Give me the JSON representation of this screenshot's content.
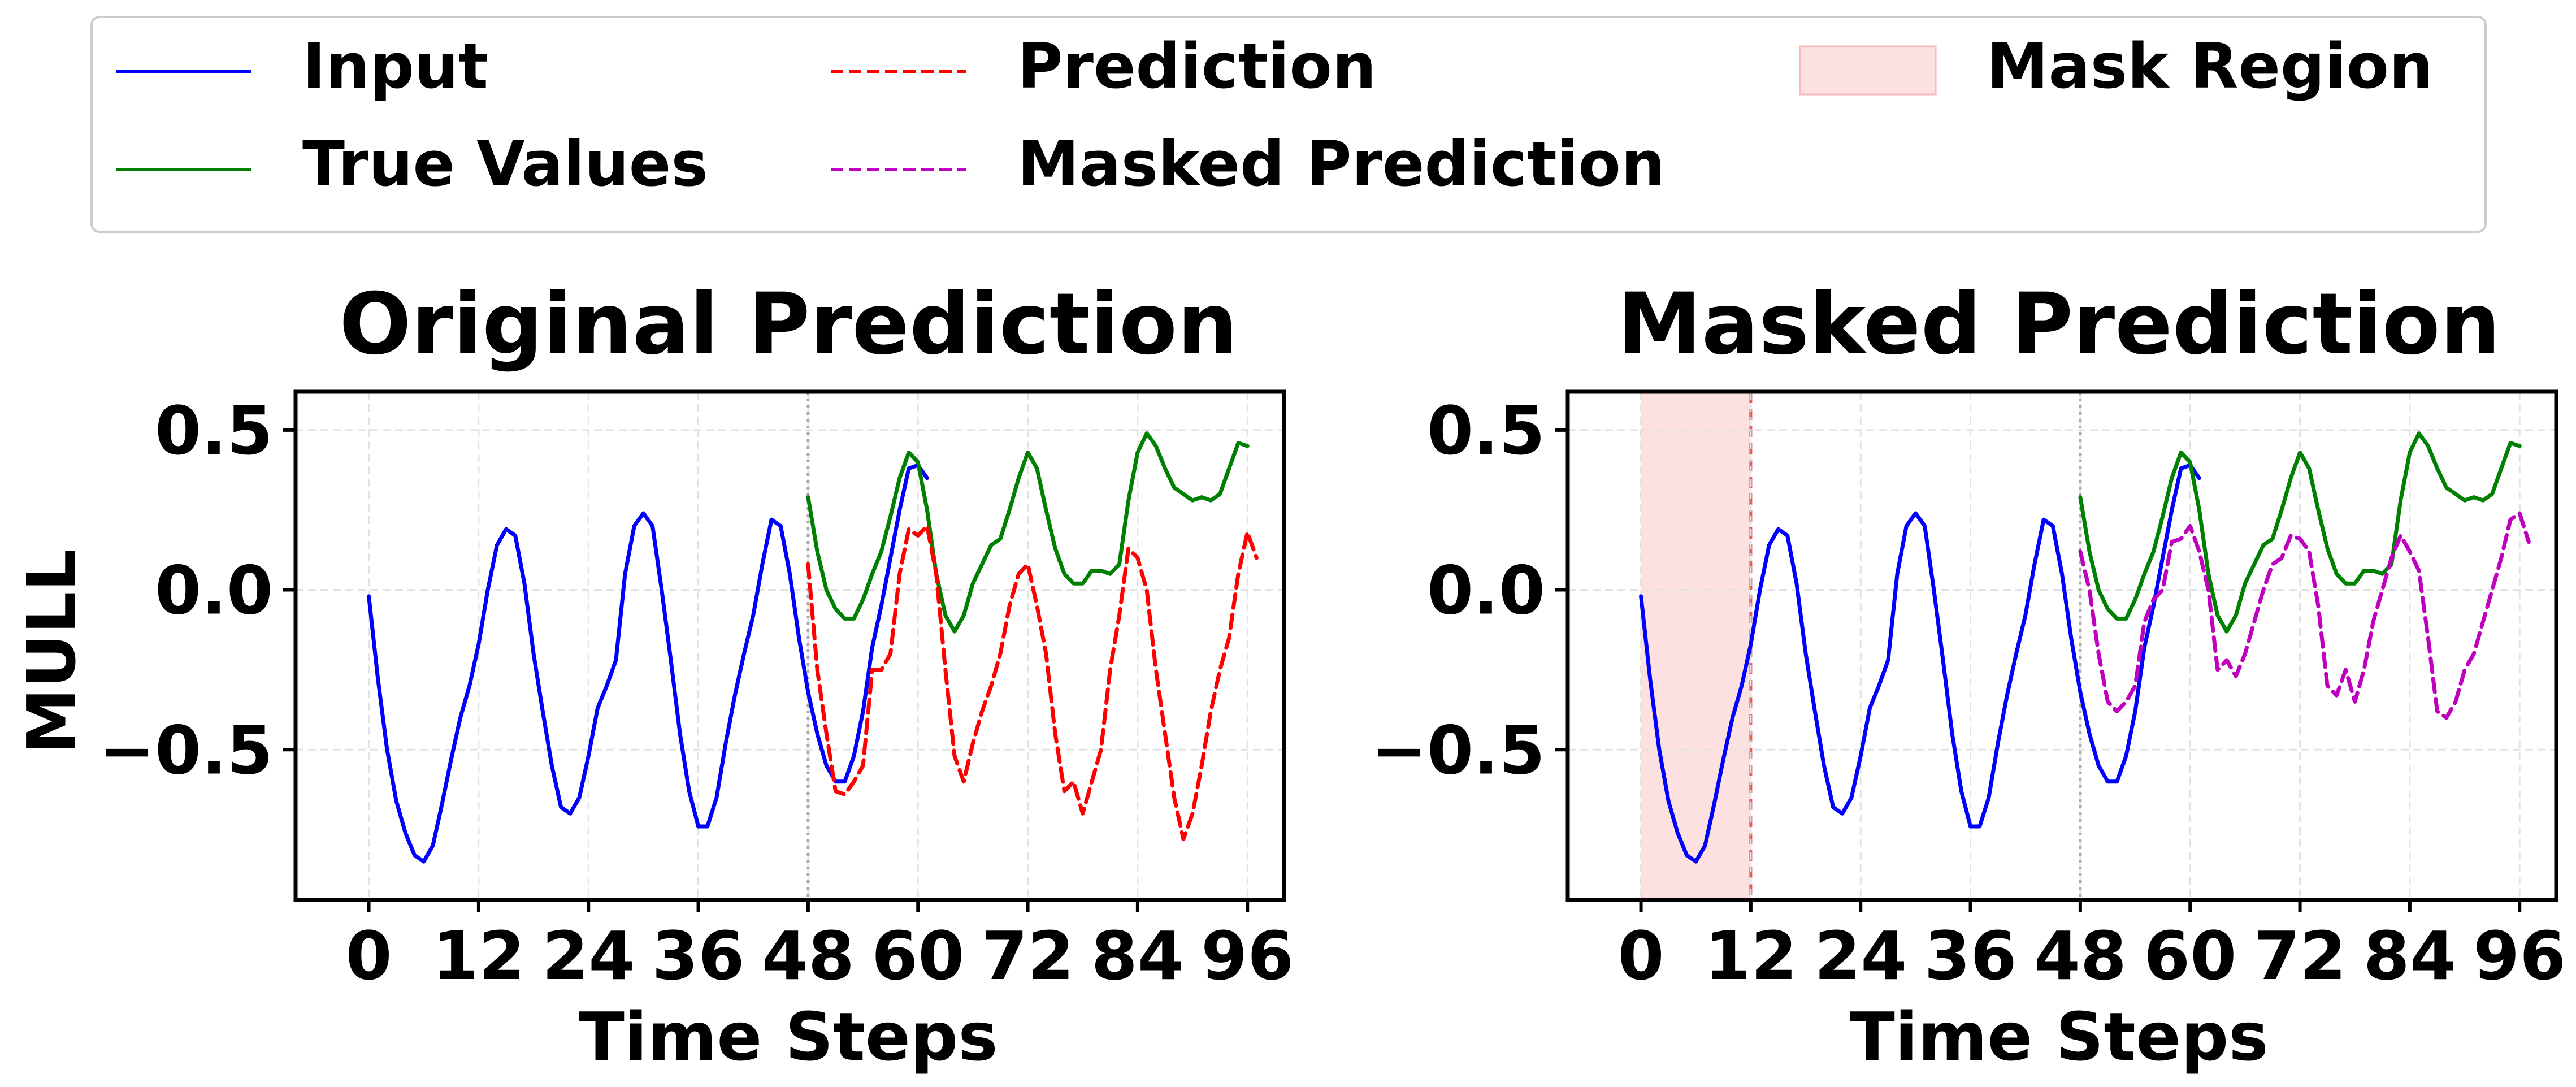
{
  "legend": {
    "items": [
      {
        "label": "Input",
        "color": "#0000ff",
        "style": "solid"
      },
      {
        "label": "True Values",
        "color": "#008000",
        "style": "solid"
      },
      {
        "label": "Prediction",
        "color": "#ff0000",
        "style": "dashed"
      },
      {
        "label": "Masked Prediction",
        "color": "#bf00bf",
        "style": "dashed"
      },
      {
        "label": "Mask Region",
        "color": "#fde0e0",
        "style": "patch"
      }
    ],
    "placement": "top"
  },
  "chart_data": [
    {
      "type": "line",
      "title": "Original Prediction",
      "xlabel": "Time Steps",
      "ylabel": "MULL",
      "xlim": [
        -8,
        100
      ],
      "ylim": [
        -0.97,
        0.62
      ],
      "xticks": [
        0,
        12,
        24,
        36,
        48,
        60,
        72,
        84,
        96
      ],
      "yticks": [
        0.5,
        0.0,
        -0.5
      ],
      "ytick_labels": [
        "0.5",
        "0.0",
        "−0.5"
      ],
      "grid": true,
      "forecast_start": 48,
      "series": [
        {
          "name": "Input",
          "color": "#0000ff",
          "dash": "solid",
          "x_start": 0,
          "values": [
            -0.02,
            -0.28,
            -0.5,
            -0.66,
            -0.76,
            -0.83,
            -0.85,
            -0.8,
            -0.67,
            -0.53,
            -0.4,
            -0.3,
            -0.17,
            0.0,
            0.14,
            0.19,
            0.17,
            0.02,
            -0.2,
            -0.38,
            -0.55,
            -0.68,
            -0.7,
            -0.65,
            -0.52,
            -0.37,
            -0.3,
            -0.22,
            0.05,
            0.2,
            0.24,
            0.2,
            0.0,
            -0.22,
            -0.45,
            -0.63,
            -0.74,
            -0.74,
            -0.65,
            -0.48,
            -0.33,
            -0.2,
            -0.08,
            0.08,
            0.22,
            0.2,
            0.05,
            -0.15,
            -0.32,
            -0.45,
            -0.55,
            -0.6,
            -0.6,
            -0.52,
            -0.38,
            -0.18,
            -0.05,
            0.1,
            0.25,
            0.38,
            0.39,
            0.35
          ]
        },
        {
          "name": "True Values",
          "color": "#008000",
          "dash": "solid",
          "x_start": 48,
          "values": [
            0.29,
            0.12,
            0.0,
            -0.06,
            -0.09,
            -0.09,
            -0.03,
            0.05,
            0.12,
            0.23,
            0.35,
            0.43,
            0.4,
            0.25,
            0.05,
            -0.08,
            -0.13,
            -0.08,
            0.02,
            0.08,
            0.14,
            0.16,
            0.25,
            0.35,
            0.43,
            0.38,
            0.25,
            0.13,
            0.05,
            0.02,
            0.02,
            0.06,
            0.06,
            0.05,
            0.08,
            0.28,
            0.43,
            0.49,
            0.45,
            0.38,
            0.32,
            0.3,
            0.28,
            0.29,
            0.28,
            0.3,
            0.38,
            0.46,
            0.45
          ]
        },
        {
          "name": "Prediction",
          "color": "#ff0000",
          "dash": "dashed",
          "x_start": 48,
          "values": [
            0.08,
            -0.25,
            -0.45,
            -0.63,
            -0.64,
            -0.6,
            -0.55,
            -0.25,
            -0.25,
            -0.2,
            0.05,
            0.19,
            0.17,
            0.2,
            0.05,
            -0.25,
            -0.52,
            -0.6,
            -0.48,
            -0.38,
            -0.3,
            -0.2,
            -0.05,
            0.05,
            0.08,
            -0.05,
            -0.2,
            -0.45,
            -0.63,
            -0.6,
            -0.7,
            -0.6,
            -0.5,
            -0.25,
            -0.08,
            0.13,
            0.1,
            0.0,
            -0.25,
            -0.45,
            -0.65,
            -0.78,
            -0.7,
            -0.55,
            -0.38,
            -0.25,
            -0.15,
            0.05,
            0.18,
            0.1
          ]
        }
      ]
    },
    {
      "type": "line",
      "title": "Masked Prediction",
      "xlabel": "Time Steps",
      "ylabel": "",
      "xlim": [
        -8,
        100
      ],
      "ylim": [
        -0.97,
        0.62
      ],
      "xticks": [
        0,
        12,
        24,
        36,
        48,
        60,
        72,
        84,
        96
      ],
      "yticks": [
        0.5,
        0.0,
        -0.5
      ],
      "ytick_labels": [
        "0.5",
        "0.0",
        "−0.5"
      ],
      "grid": true,
      "forecast_start": 48,
      "mask_region": [
        0,
        12
      ],
      "series": [
        {
          "name": "Input",
          "color": "#0000ff",
          "dash": "solid",
          "x_start": 0,
          "values": [
            -0.02,
            -0.28,
            -0.5,
            -0.66,
            -0.76,
            -0.83,
            -0.85,
            -0.8,
            -0.67,
            -0.53,
            -0.4,
            -0.3,
            -0.17,
            0.0,
            0.14,
            0.19,
            0.17,
            0.02,
            -0.2,
            -0.38,
            -0.55,
            -0.68,
            -0.7,
            -0.65,
            -0.52,
            -0.37,
            -0.3,
            -0.22,
            0.05,
            0.2,
            0.24,
            0.2,
            0.0,
            -0.22,
            -0.45,
            -0.63,
            -0.74,
            -0.74,
            -0.65,
            -0.48,
            -0.33,
            -0.2,
            -0.08,
            0.08,
            0.22,
            0.2,
            0.05,
            -0.15,
            -0.32,
            -0.45,
            -0.55,
            -0.6,
            -0.6,
            -0.52,
            -0.38,
            -0.18,
            -0.05,
            0.1,
            0.25,
            0.38,
            0.39,
            0.35
          ]
        },
        {
          "name": "True Values",
          "color": "#008000",
          "dash": "solid",
          "x_start": 48,
          "values": [
            0.29,
            0.12,
            0.0,
            -0.06,
            -0.09,
            -0.09,
            -0.03,
            0.05,
            0.12,
            0.23,
            0.35,
            0.43,
            0.4,
            0.25,
            0.05,
            -0.08,
            -0.13,
            -0.08,
            0.02,
            0.08,
            0.14,
            0.16,
            0.25,
            0.35,
            0.43,
            0.38,
            0.25,
            0.13,
            0.05,
            0.02,
            0.02,
            0.06,
            0.06,
            0.05,
            0.08,
            0.28,
            0.43,
            0.49,
            0.45,
            0.38,
            0.32,
            0.3,
            0.28,
            0.29,
            0.28,
            0.3,
            0.38,
            0.46,
            0.45
          ]
        },
        {
          "name": "Masked Prediction",
          "color": "#bf00bf",
          "dash": "dashed",
          "x_start": 48,
          "values": [
            0.12,
            0.0,
            -0.2,
            -0.35,
            -0.38,
            -0.35,
            -0.3,
            -0.1,
            -0.03,
            0.0,
            0.15,
            0.16,
            0.2,
            0.12,
            0.0,
            -0.25,
            -0.22,
            -0.27,
            -0.2,
            -0.1,
            0.0,
            0.08,
            0.1,
            0.17,
            0.16,
            0.12,
            -0.05,
            -0.3,
            -0.33,
            -0.25,
            -0.35,
            -0.25,
            -0.1,
            0.0,
            0.1,
            0.17,
            0.12,
            0.06,
            -0.15,
            -0.38,
            -0.4,
            -0.35,
            -0.25,
            -0.2,
            -0.1,
            0.0,
            0.1,
            0.22,
            0.24,
            0.15
          ]
        }
      ]
    }
  ]
}
